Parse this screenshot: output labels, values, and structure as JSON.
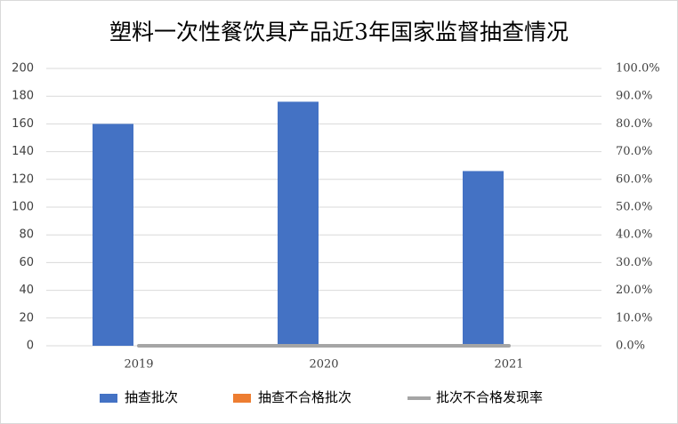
{
  "chart_data": {
    "type": "bar",
    "title": "塑料一次性餐饮具产品近3年国家监督抽查情况",
    "categories": [
      "2019",
      "2020",
      "2021"
    ],
    "series": [
      {
        "name": "抽查批次",
        "color": "#4472c4",
        "values": [
          160,
          176,
          126
        ]
      },
      {
        "name": "抽查不合格批次",
        "color": "#ed7d31",
        "values": [
          0,
          0,
          0
        ]
      },
      {
        "name": "批次不合格发现率",
        "color": "#a5a5a5",
        "values": [
          0,
          0,
          0
        ],
        "axis": "y2",
        "type": "line"
      }
    ],
    "ylim": [
      0,
      200
    ],
    "yticks": [
      0,
      20,
      40,
      60,
      80,
      100,
      120,
      140,
      160,
      180,
      200
    ],
    "y2lim": [
      0,
      100
    ],
    "y2ticks": [
      {
        "value": 0,
        "label": "0.0%"
      },
      {
        "value": 10,
        "label": "10.0%"
      },
      {
        "value": 20,
        "label": "20.0%"
      },
      {
        "value": 30,
        "label": "30.0%"
      },
      {
        "value": 40,
        "label": "40.0%"
      },
      {
        "value": 50,
        "label": "50.0%"
      },
      {
        "value": 60,
        "label": "60.0%"
      },
      {
        "value": 70,
        "label": "70.0%"
      },
      {
        "value": 80,
        "label": "80.0%"
      },
      {
        "value": 90,
        "label": "90.0%"
      },
      {
        "value": 100,
        "label": "100.0%"
      }
    ],
    "grid": true,
    "legend": "bottom"
  }
}
